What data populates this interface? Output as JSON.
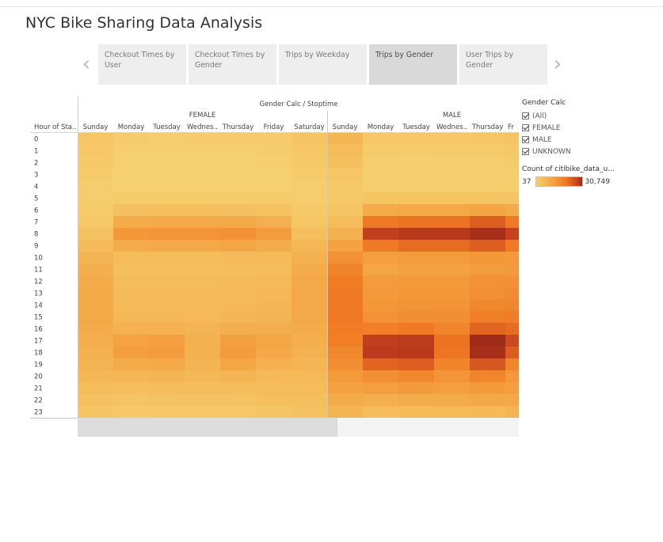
{
  "title": "NYC Bike Sharing Data Analysis",
  "story": {
    "prev_icon": "chevron-left-icon",
    "next_icon": "chevron-right-icon",
    "points": [
      {
        "label": "Checkout Times by User",
        "active": false
      },
      {
        "label": "Checkout Times by Gender",
        "active": false
      },
      {
        "label": "Trips by Weekday",
        "active": false
      },
      {
        "label": "Trips by Gender",
        "active": true
      },
      {
        "label": "User Trips by Gender",
        "active": false
      }
    ]
  },
  "legend": {
    "filter_title": "Gender Calc",
    "filters": [
      {
        "label": "(All)",
        "checked": true
      },
      {
        "label": "FEMALE",
        "checked": true
      },
      {
        "label": "MALE",
        "checked": true
      },
      {
        "label": "UNKNOWN",
        "checked": true
      }
    ],
    "count_title": "Count of citibike_data_u...",
    "min_label": "37",
    "max_label": "30,749",
    "colors": [
      "#f6d06f",
      "#f4a443",
      "#ef7722",
      "#c5421d",
      "#9e2a18"
    ]
  },
  "chart_data": {
    "type": "heatmap",
    "column_header": "Gender Calc / Stoptime",
    "row_header": "Hour of Sta..",
    "hours": [
      "0",
      "1",
      "2",
      "3",
      "4",
      "5",
      "6",
      "7",
      "8",
      "9",
      "10",
      "11",
      "12",
      "13",
      "14",
      "15",
      "16",
      "17",
      "18",
      "19",
      "20",
      "21",
      "22",
      "23"
    ],
    "groups": [
      {
        "name": "FEMALE",
        "days": [
          "Sunday",
          "Monday",
          "Tuesday",
          "Wednes..",
          "Thursday",
          "Friday",
          "Saturday"
        ],
        "values": [
          [
            1800,
            700,
            600,
            700,
            800,
            900,
            2000
          ],
          [
            1400,
            350,
            300,
            350,
            400,
            500,
            1600
          ],
          [
            1000,
            200,
            180,
            200,
            250,
            300,
            1200
          ],
          [
            700,
            150,
            120,
            150,
            180,
            200,
            800
          ],
          [
            500,
            200,
            180,
            200,
            200,
            250,
            500
          ],
          [
            600,
            900,
            950,
            950,
            900,
            800,
            600
          ],
          [
            900,
            2800,
            3000,
            3000,
            2900,
            2500,
            1000
          ],
          [
            1500,
            6500,
            7000,
            7000,
            6800,
            5800,
            1800
          ],
          [
            2500,
            10000,
            10500,
            10500,
            11000,
            9000,
            3000
          ],
          [
            3800,
            6500,
            7000,
            7000,
            7500,
            6500,
            4500
          ],
          [
            5000,
            3500,
            3500,
            3500,
            3800,
            3800,
            5500
          ],
          [
            6000,
            3000,
            3000,
            3000,
            3300,
            3500,
            6500
          ],
          [
            6500,
            3500,
            3500,
            3500,
            3800,
            4000,
            7000
          ],
          [
            6800,
            3800,
            3800,
            3800,
            4000,
            4200,
            7000
          ],
          [
            6800,
            3800,
            3800,
            3800,
            4000,
            4500,
            7000
          ],
          [
            6800,
            4200,
            4200,
            4000,
            4500,
            5000,
            6800
          ],
          [
            6500,
            5500,
            5500,
            5000,
            6000,
            6000,
            6500
          ],
          [
            6000,
            8000,
            8500,
            5500,
            8500,
            7500,
            6000
          ],
          [
            5500,
            8500,
            9000,
            5500,
            9000,
            7000,
            5500
          ],
          [
            5000,
            6500,
            7000,
            5000,
            7500,
            5500,
            4800
          ],
          [
            4200,
            4500,
            5000,
            4200,
            5000,
            4000,
            4000
          ],
          [
            3500,
            3000,
            3500,
            3300,
            3500,
            3500,
            3500
          ],
          [
            2800,
            2200,
            2500,
            2500,
            2500,
            3000,
            3000
          ],
          [
            2000,
            1200,
            1400,
            1500,
            1500,
            2200,
            2500
          ]
        ]
      },
      {
        "name": "MALE",
        "days": [
          "Sunday",
          "Monday",
          "Tuesday",
          "Wednes..",
          "Thursday",
          "Fr"
        ],
        "values": [
          [
            4500,
            1500,
            1400,
            1500,
            1700,
            2200
          ],
          [
            3500,
            800,
            700,
            800,
            900,
            1200
          ],
          [
            2700,
            500,
            400,
            500,
            600,
            800
          ],
          [
            1800,
            350,
            300,
            350,
            400,
            500
          ],
          [
            1200,
            400,
            400,
            400,
            450,
            500
          ],
          [
            1300,
            2200,
            2300,
            2300,
            2200,
            2000
          ],
          [
            2000,
            6500,
            7000,
            7000,
            7500,
            6500
          ],
          [
            3500,
            15000,
            16000,
            16000,
            19000,
            15000
          ],
          [
            5500,
            24000,
            26000,
            26000,
            29000,
            23000
          ],
          [
            8000,
            15000,
            17000,
            17000,
            19000,
            15000
          ],
          [
            11000,
            8500,
            9000,
            9000,
            10000,
            9500
          ],
          [
            13000,
            7500,
            8000,
            8000,
            9000,
            9500
          ],
          [
            14500,
            9000,
            9500,
            9500,
            11000,
            11000
          ],
          [
            15000,
            9500,
            10000,
            10000,
            11500,
            12000
          ],
          [
            15000,
            10000,
            10500,
            10500,
            12500,
            13000
          ],
          [
            15000,
            11000,
            11500,
            11500,
            14000,
            14500
          ],
          [
            14500,
            14000,
            15000,
            13000,
            18000,
            17000
          ],
          [
            14000,
            24000,
            25000,
            16000,
            30749,
            22000
          ],
          [
            12500,
            25000,
            25500,
            15500,
            29000,
            19000
          ],
          [
            11500,
            18000,
            19000,
            13000,
            20000,
            13000
          ],
          [
            9500,
            11500,
            12500,
            10500,
            13000,
            10000
          ],
          [
            8000,
            8500,
            9000,
            8500,
            9500,
            8500
          ],
          [
            6500,
            6000,
            6500,
            6500,
            7000,
            7000
          ],
          [
            5000,
            3500,
            3800,
            4000,
            4000,
            5000
          ]
        ]
      }
    ],
    "color_min": 37,
    "color_max": 30749
  }
}
